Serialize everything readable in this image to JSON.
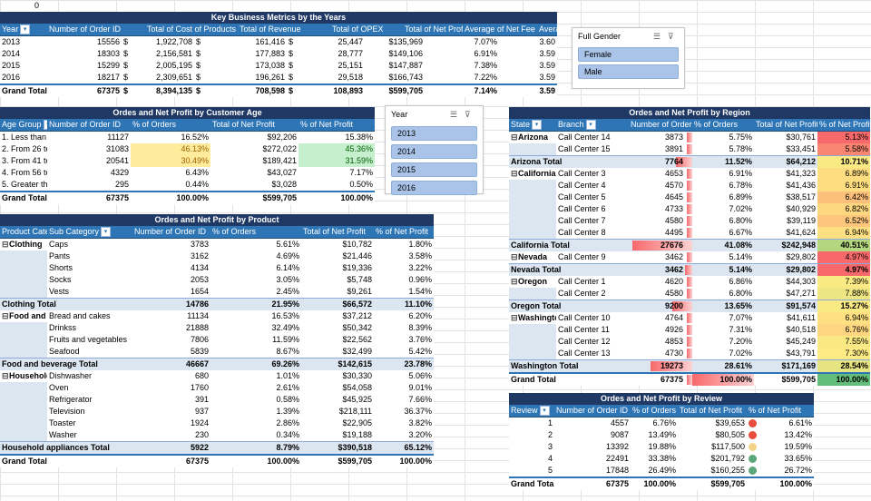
{
  "sheet": {
    "cell_a0": "0"
  },
  "kbm": {
    "title": "Key Business Metrics by the Years",
    "headers": [
      "Year",
      "Number of Order ID",
      "Total of Cost of Products",
      "Total of Revenue",
      "Total of OPEX",
      "Total of Net Profit",
      "Average of Net Fee",
      "Average of R"
    ],
    "rows": [
      [
        "2013",
        "15556",
        "$",
        "1,922,708",
        "$",
        "161,416",
        "$",
        "25,447",
        "$135,969",
        "7.07%",
        "3.60"
      ],
      [
        "2014",
        "18303",
        "$",
        "2,156,581",
        "$",
        "177,883",
        "$",
        "28,777",
        "$149,106",
        "6.91%",
        "3.59"
      ],
      [
        "2015",
        "15299",
        "$",
        "2,005,195",
        "$",
        "173,038",
        "$",
        "25,151",
        "$147,887",
        "7.38%",
        "3.59"
      ],
      [
        "2016",
        "18217",
        "$",
        "2,309,651",
        "$",
        "196,261",
        "$",
        "29,518",
        "$166,743",
        "7.22%",
        "3.59"
      ]
    ],
    "grand": [
      "Grand Total",
      "67375",
      "$",
      "8,394,135",
      "$",
      "708,598",
      "$",
      "108,893",
      "$599,705",
      "7.14%",
      "3.59"
    ]
  },
  "gender_slicer": {
    "title": "Full Gender",
    "items": [
      "Female",
      "Male"
    ]
  },
  "year_slicer": {
    "title": "Year",
    "items": [
      "2013",
      "2014",
      "2015",
      "2016"
    ]
  },
  "age": {
    "title": "Ordes and Net Profit by Customer Age",
    "headers": [
      "Age Group",
      "Number of Order ID",
      "% of Orders",
      "Total of Net Profit",
      "% of Net Profit"
    ],
    "rows": [
      [
        "1. Less than 25",
        "11127",
        "16.52%",
        "$92,206",
        "15.38%"
      ],
      [
        "2. From 26 to 40",
        "31083",
        "46.13%",
        "$272,022",
        "45.36%"
      ],
      [
        "3. From 41 to 55",
        "20541",
        "30.49%",
        "$189,421",
        "31.59%"
      ],
      [
        "4. From 56 to 70",
        "4329",
        "6.43%",
        "$43,027",
        "7.17%"
      ],
      [
        "5. Greater than 70",
        "295",
        "0.44%",
        "$3,028",
        "0.50%"
      ]
    ],
    "grand": [
      "Grand Total",
      "67375",
      "100.00%",
      "$599,705",
      "100.00%"
    ]
  },
  "product": {
    "title": "Ordes and Net Profit by Product",
    "headers": [
      "Product Category",
      "Sub Category",
      "Number of Order ID",
      "% of Orders",
      "Total of Net Profit",
      "% of Net Profit"
    ],
    "groups": [
      {
        "name": "Clothing",
        "items": [
          [
            "Caps",
            "3783",
            "5.61%",
            "$10,782",
            "1.80%"
          ],
          [
            "Pants",
            "3162",
            "4.69%",
            "$21,446",
            "3.58%"
          ],
          [
            "Shorts",
            "4134",
            "6.14%",
            "$19,336",
            "3.22%"
          ],
          [
            "Socks",
            "2053",
            "3.05%",
            "$5,748",
            "0.96%"
          ],
          [
            "Vests",
            "1654",
            "2.45%",
            "$9,261",
            "1.54%"
          ]
        ],
        "total": [
          "Clothing Total",
          "14786",
          "21.95%",
          "$66,572",
          "11.10%"
        ]
      },
      {
        "name": "Food and beverage",
        "items": [
          [
            "Bread and cakes",
            "11134",
            "16.53%",
            "$37,212",
            "6.20%"
          ],
          [
            "Drinkss",
            "21888",
            "32.49%",
            "$50,342",
            "8.39%"
          ],
          [
            "Fruits and vegetables",
            "7806",
            "11.59%",
            "$22,562",
            "3.76%"
          ],
          [
            "Seafood",
            "5839",
            "8.67%",
            "$32,499",
            "5.42%"
          ]
        ],
        "total": [
          "Food and beverage Total",
          "46667",
          "69.26%",
          "$142,615",
          "23.78%"
        ]
      },
      {
        "name": "Household appliances",
        "items": [
          [
            "Dishwasher",
            "680",
            "1.01%",
            "$30,330",
            "5.06%"
          ],
          [
            "Oven",
            "1760",
            "2.61%",
            "$54,058",
            "9.01%"
          ],
          [
            "Refrigerator",
            "391",
            "0.58%",
            "$45,925",
            "7.66%"
          ],
          [
            "Television",
            "937",
            "1.39%",
            "$218,111",
            "36.37%"
          ],
          [
            "Toaster",
            "1924",
            "2.86%",
            "$22,905",
            "3.82%"
          ],
          [
            "Washer",
            "230",
            "0.34%",
            "$19,188",
            "3.20%"
          ]
        ],
        "total": [
          "Household appliances Total",
          "5922",
          "8.79%",
          "$390,518",
          "65.12%"
        ]
      }
    ],
    "grand": [
      "Grand Total",
      "67375",
      "100.00%",
      "$599,705",
      "100.00%"
    ]
  },
  "region": {
    "title": "Ordes and Net Profit by Region",
    "headers": [
      "State",
      "Branch",
      "Number of Order ID",
      "% of Orders",
      "Total of Net Profit",
      "% of Net Profit"
    ],
    "groups": [
      {
        "name": "Arizona",
        "items": [
          [
            "Call Center 14",
            "3873",
            "5.75%",
            "$30,761",
            "5.13%",
            "#f8696b"
          ],
          [
            "Call Center 15",
            "3891",
            "5.78%",
            "$33,451",
            "5.58%",
            "#f98670"
          ]
        ],
        "total": [
          "Arizona Total",
          "7764",
          "11.52%",
          "$64,212",
          "10.71%",
          "#fbe983"
        ],
        "bar": 0.28
      },
      {
        "name": "California",
        "items": [
          [
            "Call Center 3",
            "4653",
            "6.91%",
            "$41,323",
            "6.89%",
            "#fedd81"
          ],
          [
            "Call Center 4",
            "4570",
            "6.78%",
            "$41,436",
            "6.91%",
            "#fedd81"
          ],
          [
            "Call Center 5",
            "4645",
            "6.89%",
            "$38,517",
            "6.42%",
            "#fdc07b"
          ],
          [
            "Call Center 6",
            "4733",
            "7.02%",
            "$40,929",
            "6.82%",
            "#fed880"
          ],
          [
            "Call Center 7",
            "4580",
            "6.80%",
            "$39,119",
            "6.52%",
            "#fdc67c"
          ],
          [
            "Call Center 8",
            "4495",
            "6.67%",
            "$41,624",
            "6.94%",
            "#fedf81"
          ]
        ],
        "total": [
          "California Total",
          "27676",
          "41.08%",
          "$242,948",
          "40.51%",
          "#b3d67f"
        ],
        "bar": 1.0
      },
      {
        "name": "Nevada",
        "items": [
          [
            "Call Center 9",
            "3462",
            "5.14%",
            "$29,802",
            "4.97%",
            "#f8696b"
          ]
        ],
        "total": [
          "Nevada Total",
          "3462",
          "5.14%",
          "$29,802",
          "4.97%",
          "#f8696b"
        ],
        "bar": 0.12
      },
      {
        "name": "Oregon",
        "items": [
          [
            "Call Center 1",
            "4620",
            "6.86%",
            "$44,303",
            "7.39%",
            "#fbe983"
          ],
          [
            "Call Center 2",
            "4580",
            "6.80%",
            "$47,271",
            "7.88%",
            "#eee583"
          ]
        ],
        "total": [
          "Oregon Total",
          "9200",
          "13.65%",
          "$91,574",
          "15.27%",
          "#fbea84"
        ],
        "bar": 0.33
      },
      {
        "name": "Washington",
        "items": [
          [
            "Call Center 10",
            "4764",
            "7.07%",
            "$41,611",
            "6.94%",
            "#fedf81"
          ],
          [
            "Call Center 11",
            "4926",
            "7.31%",
            "$40,518",
            "6.76%",
            "#fed580"
          ],
          [
            "Call Center 12",
            "4853",
            "7.20%",
            "$45,249",
            "7.55%",
            "#f9e883"
          ],
          [
            "Call Center 13",
            "4730",
            "7.02%",
            "$43,791",
            "7.30%",
            "#fdea84"
          ]
        ],
        "total": [
          "Washington Total",
          "19273",
          "28.61%",
          "$171,169",
          "28.54%",
          "#e6e383"
        ],
        "bar": 0.7
      }
    ],
    "grand": [
      "Grand Total",
      "67375",
      "100.00%",
      "$599,705",
      "100.00%",
      "#63be7b"
    ],
    "grand_bar": 1.0
  },
  "review": {
    "title": "Ordes and Net Profit by Review",
    "headers": [
      "Review",
      "Number of Order ID",
      "% of Orders",
      "Total of Net Profit",
      "% of Net Profit"
    ],
    "rows": [
      [
        "1",
        "4557",
        "6.76%",
        "$39,653",
        "6.61%",
        "#e74c3c"
      ],
      [
        "2",
        "9087",
        "13.49%",
        "$80,505",
        "13.42%",
        "#e74c3c"
      ],
      [
        "3",
        "13392",
        "19.88%",
        "$117,500",
        "19.59%",
        "#f2d48a"
      ],
      [
        "4",
        "22491",
        "33.38%",
        "$201,792",
        "33.65%",
        "#5aa579"
      ],
      [
        "5",
        "17848",
        "26.49%",
        "$160,255",
        "26.72%",
        "#5aa579"
      ]
    ],
    "grand": [
      "Grand Total",
      "67375",
      "100.00%",
      "$599,705",
      "100.00%"
    ]
  },
  "colors": {
    "header": "#2e75b6",
    "title": "#1f3864",
    "total_fill": "#dce6f1",
    "highlight_yellow": "#ffeb9c",
    "highlight_green": "#c6efce"
  }
}
